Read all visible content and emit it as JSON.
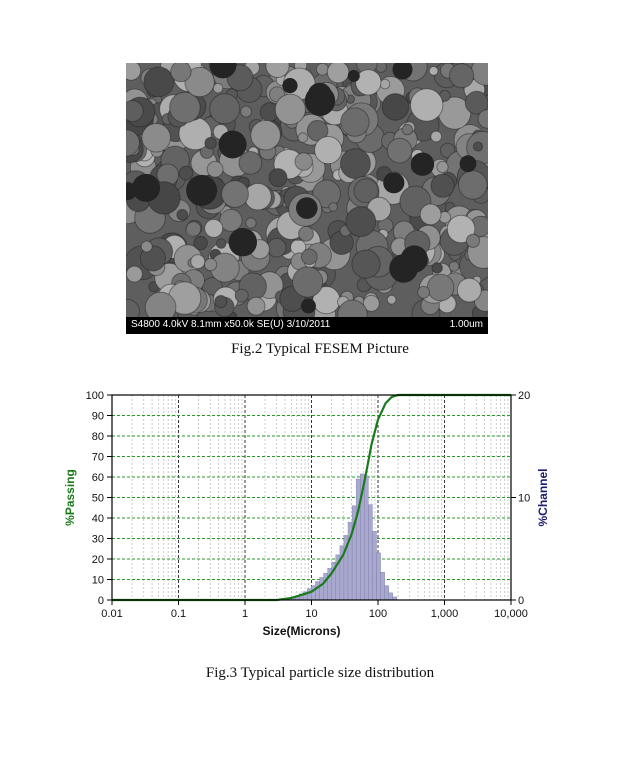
{
  "figure2": {
    "micrograph_info": "S4800 4.0kV 8.1mm x50.0k SE(U) 3/10/2011",
    "scale_label": "1.00um",
    "caption": "Fig.2 Typical FESEM Picture"
  },
  "figure3": {
    "caption": "Fig.3 Typical particle size distribution"
  },
  "colors": {
    "passing_line": "#1a7a1a",
    "channel_bars": "#a9a9cf",
    "channel_label": "#1c1c6e",
    "grid_green": "#2a9a2a"
  },
  "chart_data": {
    "type": "bar",
    "xlabel": "Size(Microns)",
    "ylabel_left": "%Passing",
    "ylabel_right": "%Channel",
    "x_scale": "log",
    "xlim": [
      0.01,
      10000
    ],
    "ylim_left": [
      0,
      100
    ],
    "ylim_right": [
      0,
      20
    ],
    "x_ticks": [
      "0.01",
      "0.1",
      "1",
      "10",
      "100",
      "1,000",
      "10,000"
    ],
    "y_ticks_left": [
      "0",
      "10",
      "20",
      "30",
      "40",
      "50",
      "60",
      "70",
      "80",
      "90",
      "100"
    ],
    "y_ticks_right": [
      "0",
      "10",
      "20"
    ],
    "grid": true,
    "series": [
      {
        "type": "bar",
        "axis": "right",
        "x": [
          4.0,
          4.6,
          5.3,
          6.1,
          7.0,
          8.0,
          9.3,
          10.7,
          12.3,
          14.2,
          16.3,
          18.8,
          21.6,
          24.9,
          28.7,
          33.0,
          38.0,
          43.8,
          50.4,
          58.0,
          66.8,
          76.9,
          88.5,
          101.9,
          117.3,
          135.0,
          155.4,
          178.9
        ],
        "values": [
          0.1,
          0.2,
          0.3,
          0.4,
          0.6,
          0.8,
          1.1,
          1.4,
          1.8,
          2.2,
          2.6,
          3.1,
          3.7,
          4.4,
          5.3,
          6.3,
          7.6,
          9.2,
          11.8,
          12.3,
          12.1,
          9.3,
          6.7,
          4.6,
          2.7,
          1.4,
          0.7,
          0.3
        ]
      },
      {
        "type": "line",
        "axis": "left",
        "x": [
          3.0,
          5.0,
          8.0,
          10.0,
          15.0,
          20.0,
          30.0,
          40.0,
          50.0,
          60.0,
          70.0,
          80.0,
          100.0,
          130.0,
          160.0,
          200.0,
          300.0,
          10000.0
        ],
        "values": [
          0,
          1,
          3,
          4,
          8,
          13,
          22,
          32,
          43,
          55,
          66,
          76,
          88,
          96,
          99,
          100,
          100,
          100
        ]
      }
    ]
  }
}
